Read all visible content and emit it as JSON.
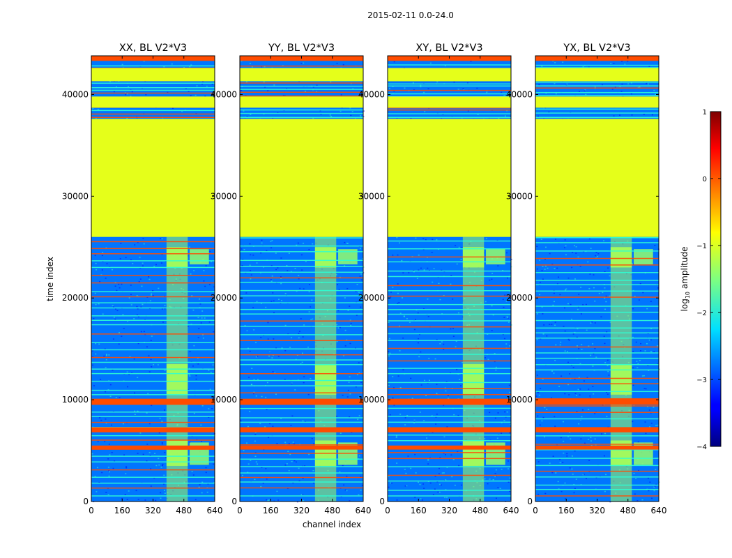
{
  "figure_title": "2015-02-11 0.0-24.0",
  "chart_data": {
    "type": "heatmap",
    "suptitle": "2015-02-11 0.0-24.0",
    "xlabel": "channel index",
    "ylabel": "time index",
    "xlim": [
      0,
      640
    ],
    "ylim": [
      0,
      43800
    ],
    "x_ticks": [
      0,
      160,
      320,
      480,
      640
    ],
    "x_tick_labels": [
      "0",
      "160",
      "320",
      "480",
      "640"
    ],
    "y_ticks": [
      0,
      10000,
      20000,
      30000,
      40000
    ],
    "y_tick_labels": [
      "0",
      "10000",
      "20000",
      "30000",
      "40000"
    ],
    "colormap": "jet",
    "colorbar": {
      "label": "log10 amplitude",
      "label_main": "log",
      "label_sub": "10",
      "label_tail": " amplitude",
      "range": [
        -4,
        1
      ],
      "ticks": [
        1,
        0,
        -1,
        -2,
        -3,
        -4
      ],
      "tick_labels": [
        "1",
        "0",
        "−1",
        "−2",
        "−3",
        "−4"
      ]
    },
    "panels": [
      {
        "title": "XX, BL V2*V3",
        "polarization": "XX",
        "baseline": "V2*V3"
      },
      {
        "title": "YY, BL V2*V3",
        "polarization": "YY",
        "baseline": "V2*V3"
      },
      {
        "title": "XY, BL V2*V3",
        "polarization": "XY",
        "baseline": "V2*V3"
      },
      {
        "title": "YX, BL V2*V3",
        "polarization": "YX",
        "baseline": "V2*V3"
      }
    ],
    "flagged_time_block": {
      "range": [
        26000,
        37600
      ],
      "log10_amplitude": -1
    },
    "bright_channel_range": [
      390,
      500
    ],
    "strong_time_bands": [
      {
        "range": [
          9500,
          10100
        ],
        "log10_amplitude": 0
      },
      {
        "range": [
          6800,
          7300
        ],
        "log10_amplitude": 0
      },
      {
        "range": [
          5100,
          5500
        ],
        "log10_amplitude": 0
      },
      {
        "range": [
          43300,
          43800
        ],
        "log10_amplitude": 0
      }
    ],
    "baseline_noise_log10_amplitude": -2.8
  },
  "colors": {
    "jet_low": "#00007f",
    "jet_mid": "#7fff7f",
    "jet_high": "#7f0000",
    "background": "#ffffff"
  }
}
